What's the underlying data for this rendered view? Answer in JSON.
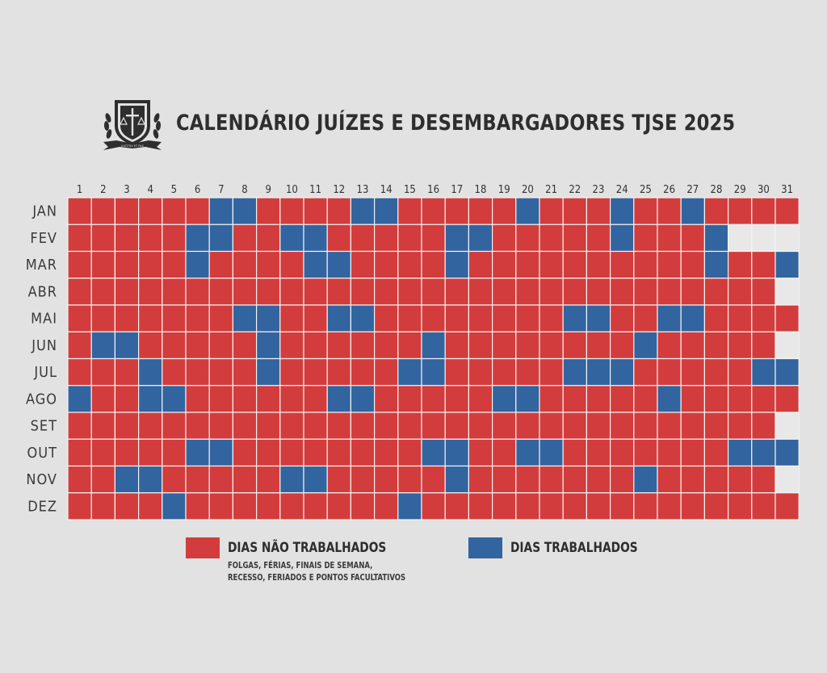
{
  "title": "CALENDÁRIO JUÍZES E DESEMBARGADORES TJSE 2025",
  "logo": {
    "icon": "emblem-icon",
    "motto": "JUSTITIA ET PAX"
  },
  "colors": {
    "non_worked": "#d33c3c",
    "worked": "#3264a0",
    "empty": "#e8e8e8",
    "grid_line": "#f2f2f2"
  },
  "legend": {
    "non_worked_label": "DIAS NÃO TRABALHADOS",
    "non_worked_detail_1": "FOLGAS, FÉRIAS, FINAIS DE SEMANA,",
    "non_worked_detail_2": "RECESSO, FERIADOS E PONTOS FACULTATIVOS",
    "worked_label": "DIAS TRABALHADOS"
  },
  "chart_data": {
    "type": "heatmap",
    "x_labels": [
      "1",
      "2",
      "3",
      "4",
      "5",
      "6",
      "7",
      "8",
      "9",
      "10",
      "11",
      "12",
      "13",
      "14",
      "15",
      "16",
      "17",
      "18",
      "19",
      "20",
      "21",
      "22",
      "23",
      "24",
      "25",
      "26",
      "27",
      "28",
      "29",
      "30",
      "31"
    ],
    "y_labels": [
      "JAN",
      "FEV",
      "MAR",
      "ABR",
      "MAI",
      "JUN",
      "JUL",
      "AGO",
      "SET",
      "OUT",
      "NOV",
      "DEZ"
    ],
    "days_in_month": [
      31,
      28,
      31,
      30,
      31,
      30,
      31,
      31,
      30,
      31,
      30,
      31
    ],
    "categories": [
      "DIAS NÃO TRABALHADOS",
      "DIAS TRABALHADOS"
    ],
    "worked_days": {
      "JAN": [
        7,
        8,
        13,
        14,
        20,
        24,
        27
      ],
      "FEV": [
        6,
        7,
        10,
        11,
        17,
        18,
        24,
        28
      ],
      "MAR": [
        6,
        11,
        12,
        17,
        28,
        31
      ],
      "ABR": [],
      "MAI": [
        8,
        9,
        12,
        13,
        22,
        23,
        26,
        27
      ],
      "JUN": [
        2,
        3,
        9,
        16,
        25
      ],
      "JUL": [
        4,
        9,
        15,
        16,
        22,
        23,
        24,
        30,
        31
      ],
      "AGO": [
        1,
        4,
        5,
        12,
        13,
        19,
        20,
        26
      ],
      "SET": [],
      "OUT": [
        6,
        7,
        16,
        17,
        20,
        21,
        29,
        30,
        31
      ],
      "NOV": [
        3,
        4,
        10,
        11,
        17,
        25
      ],
      "DEZ": [
        5,
        15
      ]
    }
  }
}
